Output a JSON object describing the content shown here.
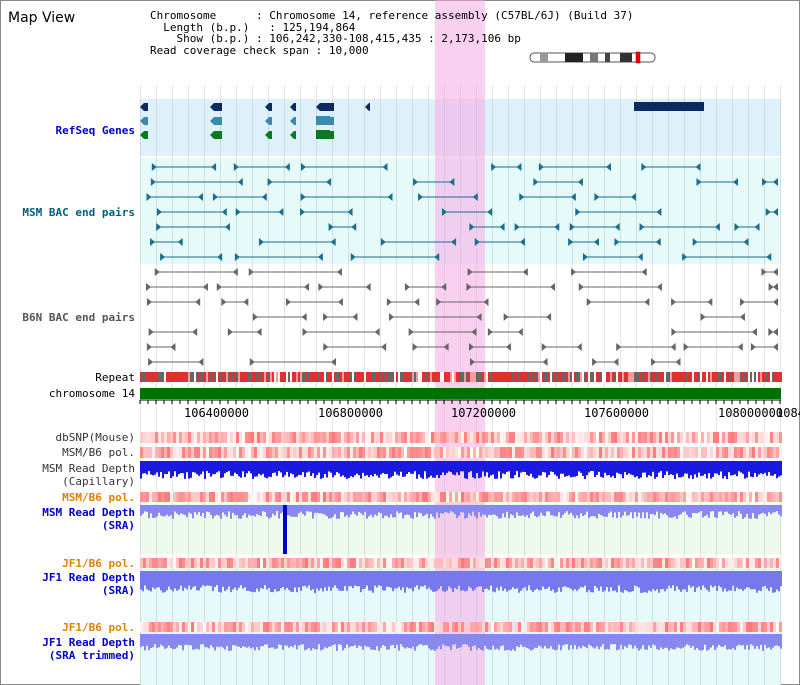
{
  "title": "Map View",
  "info": {
    "chromosome_label": "Chromosome",
    "chromosome_value": "Chromosome 14, reference assembly (C57BL/6J) (Build 37)",
    "length_label": "Length (b.p.)",
    "length_value": "125,194,864",
    "show_label": "Show (b.p.)",
    "show_value": "106,242,330-108,415,435 : 2,173,106 bp",
    "coverage_label": "Read coverage check span",
    "coverage_value": "10,000"
  },
  "tracks": {
    "refseq": "RefSeq Genes",
    "msm_bac": "MSM BAC end pairs",
    "b6n_bac": "B6N BAC end pairs",
    "repeat": "Repeat",
    "chromosome": "chromosome 14",
    "dbsnp": "dbSNP(Mouse)",
    "msm_b6_pol_1": "MSM/B6 pol.",
    "msm_read_depth_cap_1": "MSM Read Depth",
    "msm_read_depth_cap_2": "(Capillary)",
    "msm_b6_pol_2": "MSM/B6 pol.",
    "msm_read_depth_sra_1": "MSM Read Depth",
    "msm_read_depth_sra_2": "(SRA)",
    "jf1_b6_pol_1": "JF1/B6 pol.",
    "jf1_read_depth_sra_1": "JF1 Read Depth",
    "jf1_read_depth_sra_2": "(SRA)",
    "jf1_b6_pol_2": "JF1/B6 pol.",
    "jf1_read_depth_trim_1": "JF1 Read Depth",
    "jf1_read_depth_trim_2": "(SRA trimmed)"
  },
  "axis": {
    "ticks": [
      "106400000",
      "106800000",
      "107200000",
      "107600000",
      "108000000",
      "1084"
    ]
  },
  "colors": {
    "refseq_label": "#0000cc",
    "msm_label": "#006080",
    "b6n_label": "#555555",
    "orange_label": "#e08000",
    "blue_label": "#0000cc",
    "chromosome_bar": "#007000",
    "highlight": "#f5aae6"
  }
}
